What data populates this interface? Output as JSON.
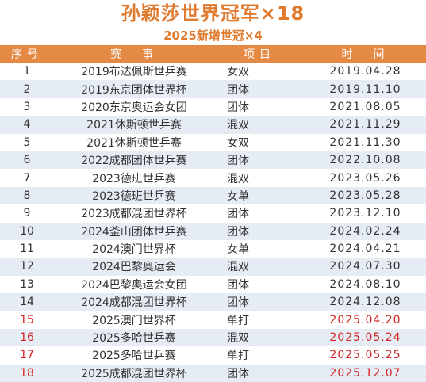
{
  "title": "孙颖莎世界冠军×18",
  "subtitle": "2025新增世冠×4",
  "columns": [
    "序号",
    "赛　事",
    "项目",
    "时　间"
  ],
  "rows": [
    {
      "num": "1",
      "event": "2019布达佩斯世乒赛",
      "type": "女双",
      "date": "2019.04.28",
      "hl": false
    },
    {
      "num": "2",
      "event": "2019东京团体世界杯",
      "type": "团体",
      "date": "2019.11.10",
      "hl": false
    },
    {
      "num": "3",
      "event": "2020东京奥运会女团",
      "type": "团体",
      "date": "2021.08.05",
      "hl": false
    },
    {
      "num": "4",
      "event": "2021休斯顿世乒赛",
      "type": "混双",
      "date": "2021.11.29",
      "hl": false
    },
    {
      "num": "5",
      "event": "2021休斯顿世乒赛",
      "type": "女双",
      "date": "2021.11.30",
      "hl": false
    },
    {
      "num": "6",
      "event": "2022成都团体世乒赛",
      "type": "团体",
      "date": "2022.10.08",
      "hl": false
    },
    {
      "num": "7",
      "event": "2023德班世乒赛",
      "type": "混双",
      "date": "2023.05.26",
      "hl": false
    },
    {
      "num": "8",
      "event": "2023德班世乒赛",
      "type": "女单",
      "date": "2023.05.28",
      "hl": false
    },
    {
      "num": "9",
      "event": "2023成都混团世界杯",
      "type": "团体",
      "date": "2023.12.10",
      "hl": false
    },
    {
      "num": "10",
      "event": "2024釜山团体世乒赛",
      "type": "团体",
      "date": "2024.02.24",
      "hl": false
    },
    {
      "num": "11",
      "event": "2024澳门世界杯",
      "type": "女单",
      "date": "2024.04.21",
      "hl": false
    },
    {
      "num": "12",
      "event": "2024巴黎奥运会",
      "type": "混双",
      "date": "2024.07.30",
      "hl": false
    },
    {
      "num": "13",
      "event": "2024巴黎奥运会女团",
      "type": "团体",
      "date": "2024.08.10",
      "hl": false
    },
    {
      "num": "14",
      "event": "2024成都混团世界杯",
      "type": "团体",
      "date": "2024.12.08",
      "hl": false
    },
    {
      "num": "15",
      "event": "2025澳门世界杯",
      "type": "单打",
      "date": "2025.04.20",
      "hl": true
    },
    {
      "num": "16",
      "event": "2025多哈世乒赛",
      "type": "混双",
      "date": "2025.05.24",
      "hl": true
    },
    {
      "num": "17",
      "event": "2025多哈世乒赛",
      "type": "单打",
      "date": "2025.05.25",
      "hl": true
    },
    {
      "num": "18",
      "event": "2025成都混团世界杯",
      "type": "团体",
      "date": "2025.12.07",
      "hl": true
    }
  ],
  "colors": {
    "title": "#e07a2f",
    "header_bg": "#e58a45",
    "stripe": "#e6ecf4",
    "highlight": "#d42424"
  }
}
